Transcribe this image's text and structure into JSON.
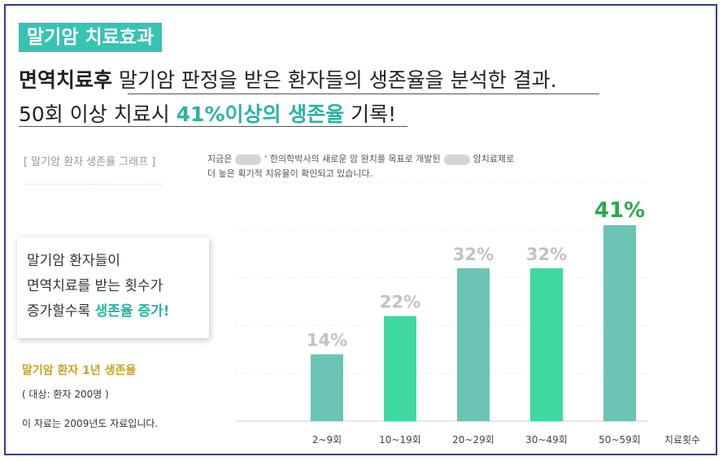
{
  "header": {
    "tag": "말기암 치료효과",
    "line1_bold": "면역치료후",
    "line1_rest": " 말기암 판정을 받은 환자들의 생존율을 분석한 결과.",
    "line2_pre": "50회 이상 치료시 ",
    "line2_hl": "41%이상의 생존율",
    "line2_post": " 기록!"
  },
  "graph_title": "[ 말기암 환자 생존률 그래프 ]",
  "note": {
    "a": "지금은",
    "b": "' 한의학박사의 새로운 암 완치를 목표로 개발된",
    "c": "암치료제로",
    "line2": "더 높은 획기적 치유율이 확인되고 있습니다."
  },
  "card": {
    "l1": "말기암 환자들이",
    "l2": "면역치료를 받는 횟수가",
    "l3_pre": "증가할수록 ",
    "l3_hl": "생존율 증가!"
  },
  "survival_label": "말기암 환자 1년 생존율",
  "target_label": "( 대상: 환자 200명 )",
  "source_label": "이 자료는 2009년도 자료입니다.",
  "colors": {
    "accent": "#37c3b2",
    "bar_teal": "#6bc4b5",
    "bar_green": "#3fd89e",
    "value_gray": "#c2c2c2",
    "value_green": "#2ea84a",
    "survival_gold": "#c9a227"
  },
  "chart_data": {
    "type": "bar",
    "categories": [
      "2~9회",
      "10~19회",
      "20~29회",
      "30~49회",
      "50~59회"
    ],
    "values": [
      14,
      22,
      32,
      32,
      41
    ],
    "value_labels": [
      "14%",
      "22%",
      "32%",
      "32%",
      "41%"
    ],
    "xlabel": "치료횟수",
    "ylim": [
      0,
      50
    ],
    "grid": true,
    "bar_colors": [
      "teal",
      "green",
      "teal",
      "green",
      "teal"
    ]
  }
}
